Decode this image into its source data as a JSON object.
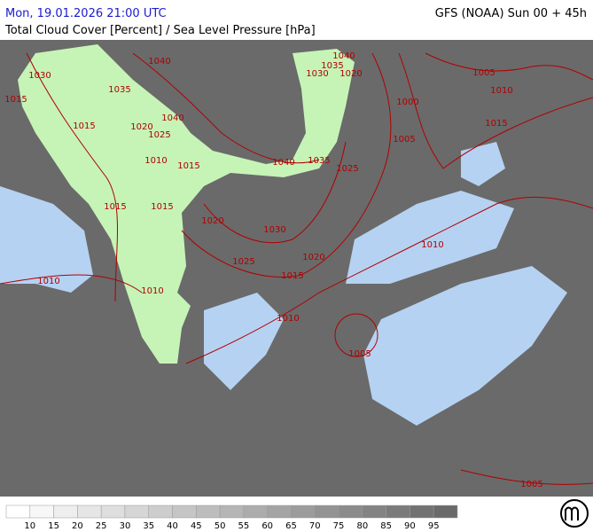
{
  "header": {
    "title": "Mon, 19.01.2026 21:00 UTC",
    "model": "GFS (NOAA) Sun 00 + 45h",
    "subtitle": "Total Cloud Cover [Percent] / Sea Level Pressure [hPa]"
  },
  "isobars": [
    "1040",
    "1035",
    "1040",
    "1030",
    "1020",
    "1005",
    "1010",
    "1000",
    "1015",
    "1015",
    "1030",
    "1035",
    "1040",
    "1020",
    "1025",
    "1015",
    "1010",
    "1015",
    "1040",
    "1035",
    "1025",
    "1005",
    "1015",
    "1015",
    "1020",
    "1030",
    "1025",
    "1020",
    "1010",
    "1015",
    "1010",
    "1010",
    "1010",
    "1005",
    "1005"
  ],
  "legend": {
    "ticks": [
      10,
      15,
      20,
      25,
      30,
      35,
      40,
      45,
      50,
      55,
      60,
      65,
      70,
      75,
      80,
      85,
      90,
      95
    ]
  }
}
